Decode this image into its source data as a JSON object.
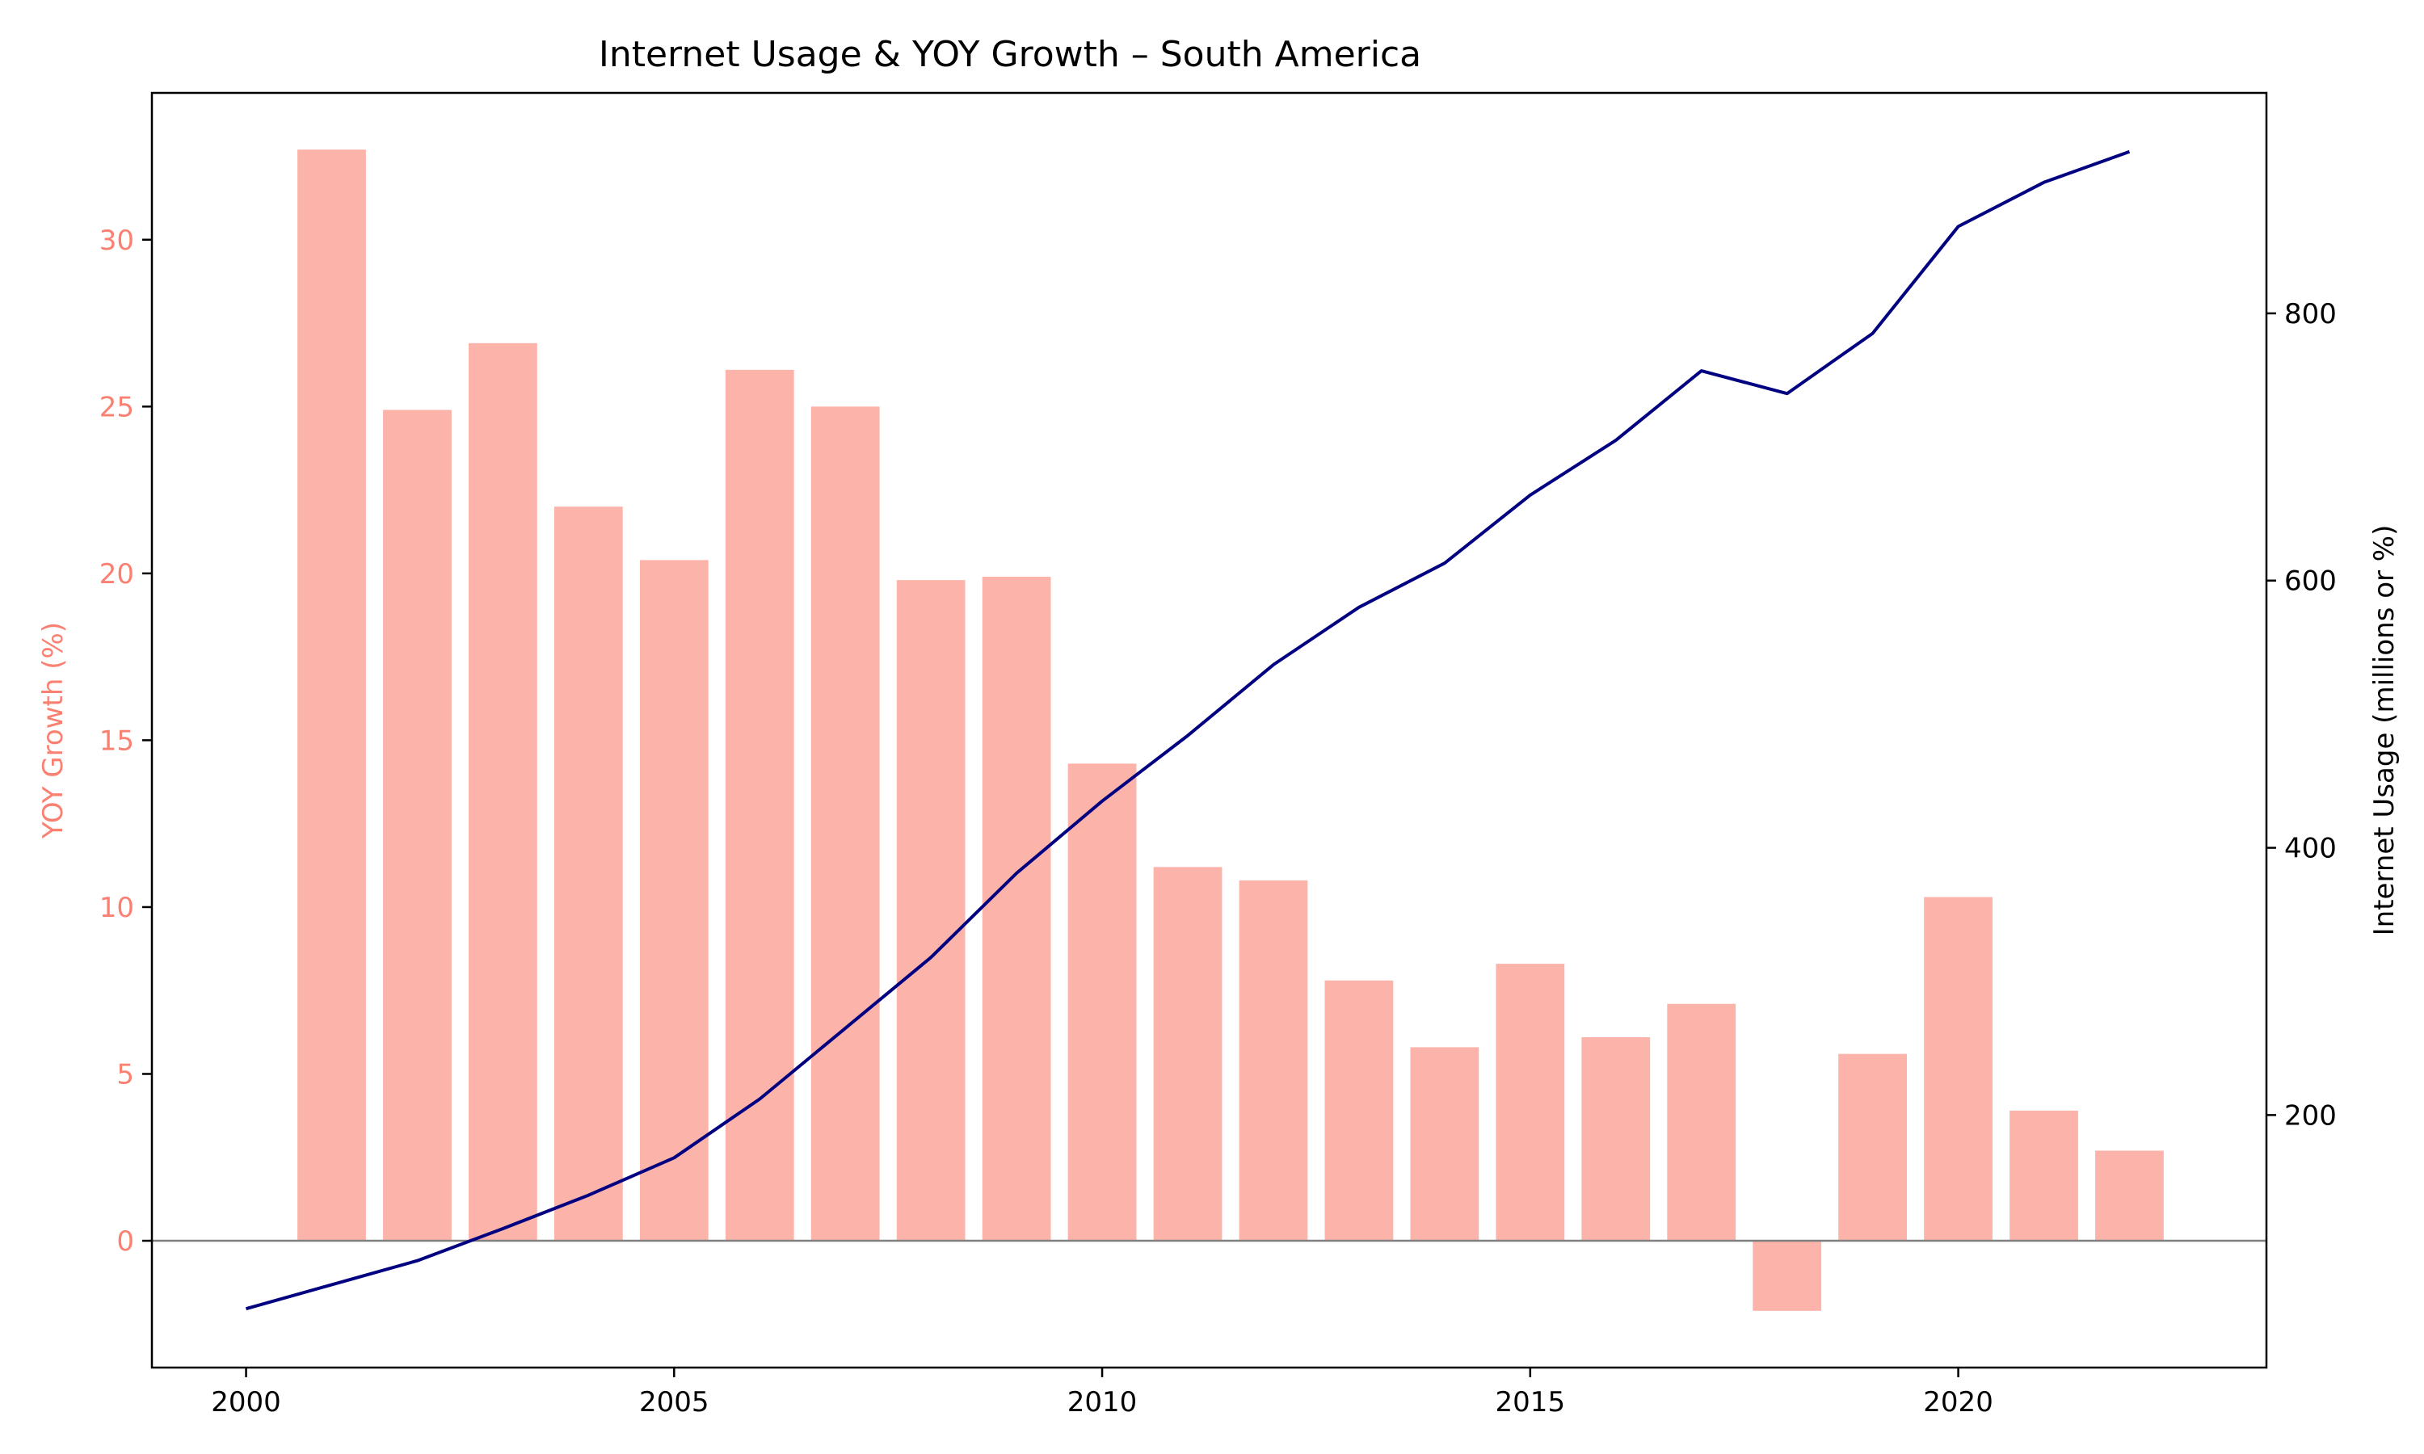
{
  "chart_data": {
    "type": "bar",
    "title": "Internet Usage & YOY Growth – South America",
    "x": [
      2000,
      2001,
      2002,
      2003,
      2004,
      2005,
      2006,
      2007,
      2008,
      2009,
      2010,
      2011,
      2012,
      2013,
      2014,
      2015,
      2016,
      2017,
      2018,
      2019,
      2020,
      2021,
      2022
    ],
    "xlim": [
      1998.9,
      2023.6
    ],
    "xticks": [
      2000,
      2005,
      2010,
      2015,
      2020
    ],
    "xlabel": "",
    "series": [
      {
        "type": "bar",
        "axis": "left",
        "color": "#fa8072",
        "x": [
          2001,
          2002,
          2003,
          2004,
          2005,
          2006,
          2007,
          2008,
          2009,
          2010,
          2011,
          2012,
          2013,
          2014,
          2015,
          2016,
          2017,
          2018,
          2019,
          2020,
          2021,
          2022
        ],
        "values": [
          32.7,
          24.9,
          26.9,
          22.0,
          20.4,
          26.1,
          25.0,
          19.8,
          19.9,
          14.3,
          11.2,
          10.8,
          7.8,
          5.8,
          8.3,
          6.1,
          7.1,
          -2.1,
          5.6,
          10.3,
          3.9,
          2.7
        ]
      },
      {
        "type": "line",
        "axis": "right",
        "color": "#000080",
        "x": [
          2000,
          2001,
          2002,
          2003,
          2004,
          2005,
          2006,
          2007,
          2008,
          2009,
          2010,
          2011,
          2012,
          2013,
          2014,
          2015,
          2016,
          2017,
          2018,
          2019,
          2020,
          2021,
          2022
        ],
        "values": [
          55,
          73,
          91,
          115,
          140,
          168,
          212,
          265,
          318,
          381,
          435,
          484,
          537,
          580,
          613,
          664,
          705,
          757,
          740,
          785,
          865,
          898,
          921
        ]
      }
    ],
    "y_left": {
      "label": "YOY Growth (%)",
      "color": "#fa8072",
      "lim": [
        -3.8,
        34.4
      ],
      "ticks": [
        0,
        5,
        10,
        15,
        20,
        25,
        30
      ]
    },
    "y_right": {
      "label": "Internet Usage (millions or %)",
      "color": "#000000",
      "lim": [
        11,
        965
      ],
      "ticks": [
        200,
        400,
        600,
        800
      ]
    },
    "zero_line": true,
    "grid": false,
    "legend": "none"
  }
}
